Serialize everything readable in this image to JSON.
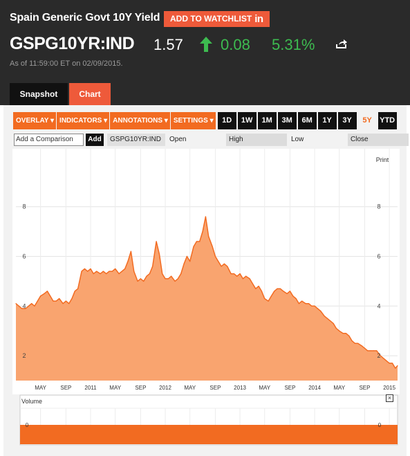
{
  "header": {
    "title": "Spain Generic Govt 10Y Yield",
    "watchlist_label": "ADD TO WATCHLIST",
    "watchlist_icon": "linkedin-in-icon",
    "ticker": "GSPG10YR:IND",
    "price": "1.57",
    "change": "0.08",
    "change_pct": "5.31%",
    "as_of": "As of 11:59:00 ET on 02/09/2015.",
    "up_color": "#3dbb50",
    "accent_color": "#ee5a3a"
  },
  "tabs": [
    {
      "label": "Snapshot"
    },
    {
      "label": "Chart"
    }
  ],
  "toolbar": {
    "menus": [
      "OVERLAY ▾",
      "INDICATORS ▾",
      "ANNOTATIONS ▾",
      "SETTINGS ▾"
    ],
    "periods": [
      "1D",
      "1W",
      "1M",
      "3M",
      "6M",
      "1Y",
      "3Y",
      "5Y",
      "YTD"
    ],
    "active_period": "5Y"
  },
  "compare": {
    "placeholder": "Add a Comparison",
    "add_label": "Add",
    "symbol": "GSPG10YR:IND",
    "open_label": "Open",
    "high_label": "High",
    "low_label": "Low",
    "close_label": "Close"
  },
  "chart_data": [
    {
      "type": "area",
      "print_label": "Print",
      "ylim": [
        1,
        8.8
      ],
      "y_ticks": [
        2,
        4,
        6,
        8
      ],
      "x_tick_labels": [
        "MAY",
        "SEP",
        "2011",
        "MAY",
        "SEP",
        "2012",
        "MAY",
        "SEP",
        "2013",
        "MAY",
        "SEP",
        "2014",
        "MAY",
        "SEP",
        "2015"
      ],
      "x_tick_years": [
        2010.33,
        2010.67,
        2011.0,
        2011.33,
        2011.67,
        2012.0,
        2012.33,
        2012.67,
        2013.0,
        2013.33,
        2013.67,
        2014.0,
        2014.33,
        2014.67,
        2015.0
      ],
      "x_range": [
        2010.0,
        2015.11
      ],
      "grid": true,
      "fill_color": "#f9a46f",
      "line_color": "#f26b21",
      "series": [
        {
          "x": [
            2010.0,
            2010.04,
            2010.08,
            2010.13,
            2010.17,
            2010.21,
            2010.25,
            2010.29,
            2010.33,
            2010.38,
            2010.42,
            2010.46,
            2010.5,
            2010.54,
            2010.58,
            2010.63,
            2010.67,
            2010.71,
            2010.75,
            2010.79,
            2010.83,
            2010.88,
            2010.92,
            2010.96,
            2011.0,
            2011.04,
            2011.08,
            2011.13,
            2011.17,
            2011.21,
            2011.25,
            2011.29,
            2011.33,
            2011.38,
            2011.42,
            2011.46,
            2011.5,
            2011.54,
            2011.58,
            2011.63,
            2011.67,
            2011.71,
            2011.75,
            2011.79,
            2011.83,
            2011.88,
            2011.92,
            2011.96,
            2012.0,
            2012.04,
            2012.08,
            2012.13,
            2012.17,
            2012.21,
            2012.25,
            2012.29,
            2012.33,
            2012.38,
            2012.42,
            2012.46,
            2012.5,
            2012.54,
            2012.58,
            2012.63,
            2012.67,
            2012.71,
            2012.75,
            2012.79,
            2012.83,
            2012.88,
            2012.92,
            2012.96,
            2013.0,
            2013.04,
            2013.08,
            2013.13,
            2013.17,
            2013.21,
            2013.25,
            2013.29,
            2013.33,
            2013.38,
            2013.42,
            2013.46,
            2013.5,
            2013.54,
            2013.58,
            2013.63,
            2013.67,
            2013.71,
            2013.75,
            2013.79,
            2013.83,
            2013.88,
            2013.92,
            2013.96,
            2014.0,
            2014.04,
            2014.08,
            2014.13,
            2014.17,
            2014.21,
            2014.25,
            2014.29,
            2014.33,
            2014.38,
            2014.42,
            2014.46,
            2014.5,
            2014.54,
            2014.58,
            2014.63,
            2014.67,
            2014.71,
            2014.75,
            2014.79,
            2014.83,
            2014.88,
            2014.92,
            2014.96,
            2015.0,
            2015.04,
            2015.08,
            2015.11
          ],
          "y": [
            4.1,
            4.0,
            3.9,
            3.9,
            4.0,
            4.1,
            4.0,
            4.2,
            4.4,
            4.5,
            4.6,
            4.4,
            4.2,
            4.2,
            4.3,
            4.1,
            4.2,
            4.1,
            4.3,
            4.6,
            4.7,
            5.4,
            5.5,
            5.4,
            5.5,
            5.3,
            5.4,
            5.3,
            5.4,
            5.3,
            5.4,
            5.4,
            5.5,
            5.3,
            5.4,
            5.5,
            5.8,
            6.2,
            5.4,
            5.0,
            5.1,
            5.0,
            5.2,
            5.3,
            5.6,
            6.6,
            6.1,
            5.3,
            5.1,
            5.1,
            5.2,
            5.0,
            5.1,
            5.3,
            5.7,
            6.0,
            5.8,
            6.4,
            6.6,
            6.6,
            7.0,
            7.6,
            6.8,
            6.4,
            6.0,
            5.8,
            5.6,
            5.7,
            5.6,
            5.3,
            5.3,
            5.2,
            5.3,
            5.1,
            5.2,
            5.1,
            4.9,
            4.7,
            4.8,
            4.6,
            4.3,
            4.2,
            4.4,
            4.6,
            4.7,
            4.7,
            4.6,
            4.5,
            4.6,
            4.4,
            4.3,
            4.1,
            4.2,
            4.1,
            4.1,
            4.0,
            4.0,
            3.9,
            3.8,
            3.6,
            3.5,
            3.4,
            3.3,
            3.1,
            3.0,
            2.9,
            2.9,
            2.8,
            2.6,
            2.5,
            2.5,
            2.4,
            2.3,
            2.2,
            2.2,
            2.2,
            2.2,
            2.0,
            1.9,
            1.8,
            1.7,
            1.7,
            1.5,
            1.6
          ]
        }
      ]
    },
    {
      "type": "bar",
      "title": "Volume",
      "y_tick_labels": [
        "0"
      ],
      "bar_color": "#f26b21"
    }
  ]
}
